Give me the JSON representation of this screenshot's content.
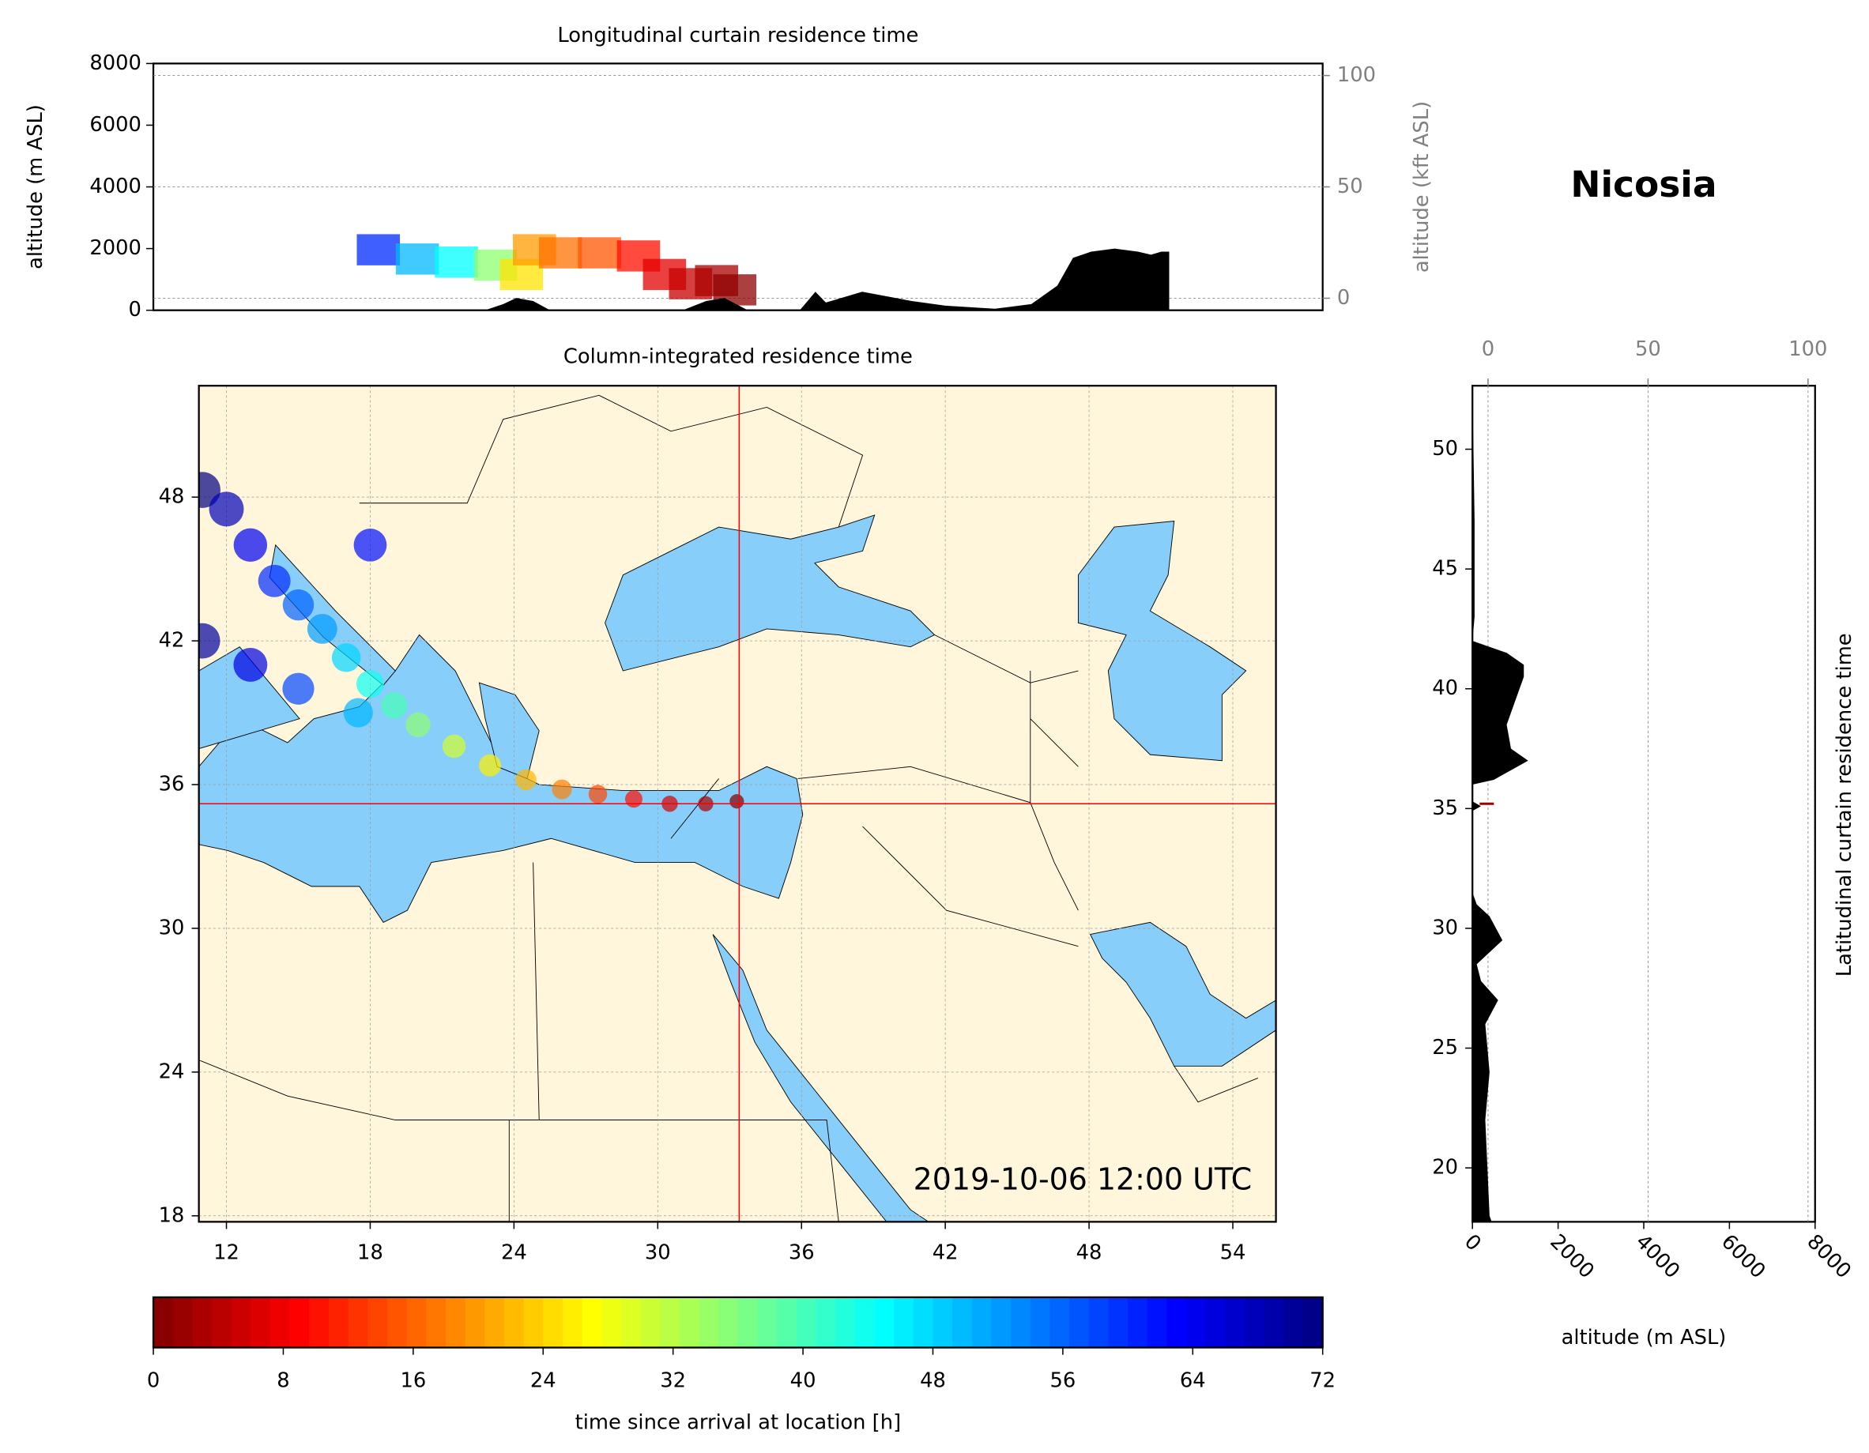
{
  "chart_data": [
    {
      "type": "curtain-lon",
      "title": "Longitudinal curtain residence time",
      "ylabel": "altitude (m ASL)",
      "y2label": "altitude (kft ASL)",
      "xlim": [
        10.85,
        55.8
      ],
      "ylim": [
        0,
        8000
      ],
      "yticks": [
        0,
        2000,
        4000,
        6000,
        8000
      ],
      "y2lim": [
        -5.4,
        105.4
      ],
      "y2ticks": [
        0,
        50,
        100
      ],
      "grid": true,
      "terrain": {
        "color": "#000000",
        "x": [
          23.6,
          24.3,
          24.8,
          25.45,
          26.1,
          31.2,
          32.1,
          32.8,
          33.7,
          35.7,
          36.3,
          36.7,
          38.1,
          40,
          41.3,
          43.2,
          44.6,
          45.6,
          46.2,
          46.9,
          47.8,
          48.7,
          49.2,
          49.6,
          49.9
        ],
        "altitude": [
          0,
          200,
          400,
          300,
          0,
          0,
          300,
          400,
          0,
          0,
          600,
          250,
          600,
          300,
          150,
          50,
          200,
          800,
          1700,
          1900,
          2000,
          1900,
          1800,
          1900,
          1900
        ]
      },
      "residence": {
        "x": [
          19.5,
          21,
          22.5,
          24,
          25,
          25.5,
          26.5,
          28,
          29.5,
          30.5,
          31.5,
          32.5,
          33.2
        ],
        "altitude": [
          2000,
          1700,
          1600,
          1500,
          1200,
          2000,
          1900,
          1900,
          1800,
          1200,
          900,
          1000,
          700
        ],
        "hours": [
          60,
          50,
          45,
          35,
          25,
          20,
          17,
          15,
          10,
          7,
          5,
          3,
          1
        ]
      }
    },
    {
      "type": "map",
      "title": "Column-integrated residence time",
      "xlim": [
        10.85,
        55.8
      ],
      "ylim": [
        17.75,
        52.65
      ],
      "xticks": [
        12,
        18,
        24,
        30,
        36,
        42,
        48,
        54
      ],
      "yticks": [
        18,
        24,
        30,
        36,
        42,
        48
      ],
      "grid": true,
      "land_color": "#fff6dc",
      "sea_color": "#87cefa",
      "station": {
        "lon": 33.4,
        "lat": 35.2,
        "color": "#ff0000"
      },
      "annotation": "2019-10-06 12:00 UTC",
      "plume": {
        "lon": [
          33.3,
          32,
          30.5,
          29,
          27.5,
          26,
          24.5,
          23,
          21.5,
          20,
          19,
          18,
          17,
          16,
          15,
          14,
          13,
          12,
          11,
          17.5,
          15,
          13,
          11,
          18
        ],
        "lat": [
          35.3,
          35.2,
          35.2,
          35.4,
          35.6,
          35.8,
          36.2,
          36.8,
          37.6,
          38.5,
          39.3,
          40.2,
          41.3,
          42.5,
          43.5,
          44.5,
          46,
          47.5,
          48.3,
          39,
          40,
          41,
          42,
          46
        ],
        "hours": [
          0,
          3,
          6,
          10,
          14,
          18,
          22,
          26,
          30,
          35,
          40,
          44,
          48,
          52,
          56,
          60,
          64,
          68,
          72,
          50,
          58,
          65,
          70,
          62
        ]
      }
    },
    {
      "type": "curtain-lat",
      "title": "Nicosia",
      "xlabel": "altitude (m ASL)",
      "ylabel": "Latitudinal curtain residence time",
      "xlim": [
        0,
        8000
      ],
      "xticks": [
        0,
        2000,
        4000,
        6000,
        8000
      ],
      "x2lim": [
        -4.87,
        102.2
      ],
      "x2ticks": [
        0,
        50,
        100
      ],
      "ylim": [
        17.75,
        52.65
      ],
      "yticks": [
        20,
        25,
        30,
        35,
        40,
        45,
        50
      ],
      "grid": true,
      "terrain": {
        "color": "#000000",
        "lat": [
          17.75,
          18,
          20,
          22,
          24,
          25,
          26,
          27,
          27.8,
          28.5,
          29.5,
          30.5,
          31,
          31.5,
          34.9,
          35.1,
          35.3,
          36,
          36.2,
          37,
          37.5,
          38.5,
          39.5,
          40.5,
          41,
          41.5,
          42,
          43,
          47,
          52.65
        ],
        "altitude": [
          450,
          400,
          350,
          300,
          400,
          350,
          300,
          600,
          200,
          100,
          700,
          400,
          100,
          0,
          0,
          200,
          0,
          0,
          500,
          1300,
          900,
          800,
          1000,
          1200,
          1200,
          800,
          0,
          50,
          50,
          0
        ]
      },
      "residence": {
        "lat": [
          35.2
        ],
        "altitude": [
          500
        ],
        "hours": [
          2
        ]
      }
    },
    {
      "type": "colorbar",
      "xlabel": "time since arrival at location [h]",
      "xlim": [
        0,
        72
      ],
      "xticks": [
        0,
        8,
        16,
        24,
        32,
        40,
        48,
        56,
        64,
        72
      ],
      "colormap": "jet_r"
    }
  ]
}
